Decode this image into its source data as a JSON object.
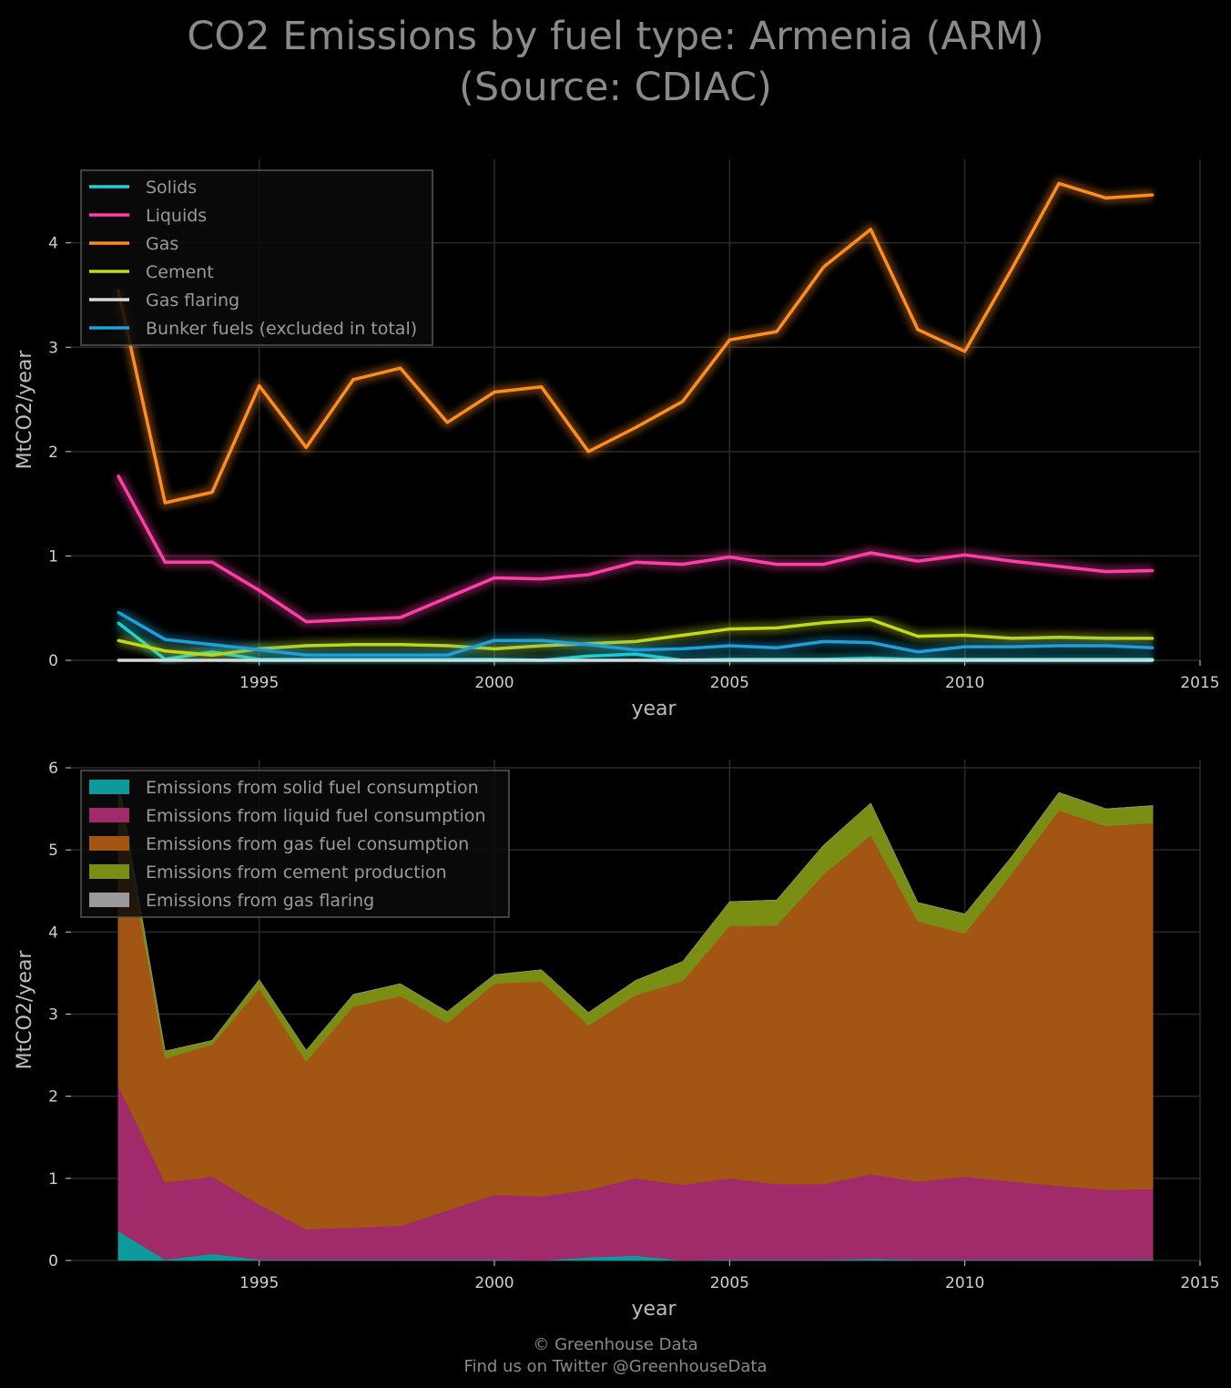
{
  "title": [
    "CO2 Emissions by fuel type: Armenia (ARM)",
    "(Source: CDIAC)"
  ],
  "footer": [
    "© Greenhouse Data",
    "Find us on Twitter @GreenhouseData"
  ],
  "colors": {
    "solids": "#1bd3d3",
    "liquids": "#ff3fa8",
    "gas": "#ff8c1f",
    "cement": "#c2d81a",
    "gas_flaring": "#d9d9d9",
    "bunker": "#1e9fd8",
    "area_solid": "#0e9a9a",
    "area_liquid": "#a02a6a",
    "area_gas": "#a35514",
    "area_cement": "#7b8e14",
    "area_flaring": "#9a9a9a"
  },
  "chart_data": [
    {
      "type": "line",
      "xlabel": "year",
      "ylabel": "MtCO2/year",
      "xlim": [
        1991,
        2015
      ],
      "ylim": [
        0,
        4.8
      ],
      "xticks": [
        1995,
        2000,
        2005,
        2010,
        2015
      ],
      "yticks": [
        0,
        1,
        2,
        3,
        4
      ],
      "grid": true,
      "legend_position": "top-left",
      "x": [
        1992,
        1993,
        1994,
        1995,
        1996,
        1997,
        1998,
        1999,
        2000,
        2001,
        2002,
        2003,
        2004,
        2005,
        2006,
        2007,
        2008,
        2009,
        2010,
        2011,
        2012,
        2013,
        2014
      ],
      "series": [
        {
          "name": "Solids",
          "color_key": "solids",
          "values": [
            0.36,
            0.01,
            0.08,
            0.01,
            0.01,
            0.01,
            0.01,
            0.01,
            0.01,
            0.0,
            0.04,
            0.06,
            0.0,
            0.01,
            0.01,
            0.01,
            0.02,
            0.01,
            0.01,
            0.01,
            0.01,
            0.01,
            0.01
          ]
        },
        {
          "name": "Liquids",
          "color_key": "liquids",
          "values": [
            1.77,
            0.94,
            0.94,
            0.67,
            0.37,
            0.39,
            0.41,
            0.6,
            0.79,
            0.78,
            0.82,
            0.94,
            0.92,
            0.99,
            0.92,
            0.92,
            1.03,
            0.95,
            1.01,
            0.95,
            0.9,
            0.85,
            0.86
          ]
        },
        {
          "name": "Gas",
          "color_key": "gas",
          "values": [
            3.55,
            1.51,
            1.61,
            2.63,
            2.04,
            2.69,
            2.8,
            2.28,
            2.57,
            2.62,
            2.0,
            2.23,
            2.48,
            3.07,
            3.15,
            3.77,
            4.13,
            3.17,
            2.96,
            3.75,
            4.57,
            4.43,
            4.46
          ]
        },
        {
          "name": "Cement",
          "color_key": "cement",
          "values": [
            0.19,
            0.09,
            0.05,
            0.11,
            0.14,
            0.15,
            0.15,
            0.14,
            0.11,
            0.14,
            0.16,
            0.18,
            0.24,
            0.3,
            0.31,
            0.36,
            0.39,
            0.23,
            0.24,
            0.21,
            0.22,
            0.21,
            0.21
          ]
        },
        {
          "name": "Gas flaring",
          "color_key": "gas_flaring",
          "values": [
            0,
            0,
            0,
            0,
            0,
            0,
            0,
            0,
            0,
            0,
            0,
            0,
            0,
            0,
            0,
            0,
            0,
            0,
            0,
            0,
            0,
            0,
            0
          ]
        },
        {
          "name": "Bunker fuels (excluded in total)",
          "color_key": "bunker",
          "values": [
            0.46,
            0.2,
            0.15,
            0.1,
            0.05,
            0.05,
            0.05,
            0.05,
            0.19,
            0.19,
            0.15,
            0.1,
            0.11,
            0.14,
            0.12,
            0.18,
            0.17,
            0.08,
            0.13,
            0.13,
            0.14,
            0.14,
            0.12
          ]
        }
      ]
    },
    {
      "type": "area",
      "stacked": true,
      "xlabel": "year",
      "ylabel": "MtCO2/year",
      "xlim": [
        1991,
        2015
      ],
      "ylim": [
        0,
        6.1
      ],
      "xticks": [
        1995,
        2000,
        2005,
        2010,
        2015
      ],
      "yticks": [
        0,
        1,
        2,
        3,
        4,
        5,
        6
      ],
      "grid": true,
      "legend_position": "top-left",
      "x": [
        1992,
        1993,
        1994,
        1995,
        1996,
        1997,
        1998,
        1999,
        2000,
        2001,
        2002,
        2003,
        2004,
        2005,
        2006,
        2007,
        2008,
        2009,
        2010,
        2011,
        2012,
        2013,
        2014
      ],
      "series": [
        {
          "name": "Emissions from solid fuel consumption",
          "color_key": "area_solid",
          "values": [
            0.36,
            0.01,
            0.08,
            0.01,
            0.01,
            0.01,
            0.01,
            0.01,
            0.01,
            0.0,
            0.04,
            0.06,
            0.0,
            0.01,
            0.01,
            0.01,
            0.02,
            0.01,
            0.01,
            0.01,
            0.01,
            0.01,
            0.01
          ]
        },
        {
          "name": "Emissions from liquid fuel consumption",
          "color_key": "area_liquid",
          "values": [
            1.77,
            0.94,
            0.94,
            0.67,
            0.37,
            0.39,
            0.41,
            0.6,
            0.79,
            0.78,
            0.82,
            0.94,
            0.92,
            0.99,
            0.92,
            0.92,
            1.03,
            0.95,
            1.01,
            0.95,
            0.9,
            0.85,
            0.86
          ]
        },
        {
          "name": "Emissions from gas fuel consumption",
          "color_key": "area_gas",
          "values": [
            3.55,
            1.51,
            1.61,
            2.63,
            2.04,
            2.69,
            2.8,
            2.28,
            2.57,
            2.62,
            2.0,
            2.23,
            2.48,
            3.07,
            3.15,
            3.77,
            4.13,
            3.17,
            2.96,
            3.75,
            4.57,
            4.43,
            4.46
          ]
        },
        {
          "name": "Emissions from cement production",
          "color_key": "area_cement",
          "values": [
            0.19,
            0.09,
            0.05,
            0.11,
            0.14,
            0.15,
            0.15,
            0.14,
            0.11,
            0.14,
            0.16,
            0.18,
            0.24,
            0.3,
            0.31,
            0.36,
            0.39,
            0.23,
            0.24,
            0.21,
            0.22,
            0.21,
            0.21
          ]
        },
        {
          "name": "Emissions from gas flaring",
          "color_key": "area_flaring",
          "values": [
            0,
            0,
            0,
            0,
            0,
            0,
            0,
            0,
            0,
            0,
            0,
            0,
            0,
            0,
            0,
            0,
            0,
            0,
            0,
            0,
            0,
            0,
            0
          ]
        }
      ]
    }
  ]
}
